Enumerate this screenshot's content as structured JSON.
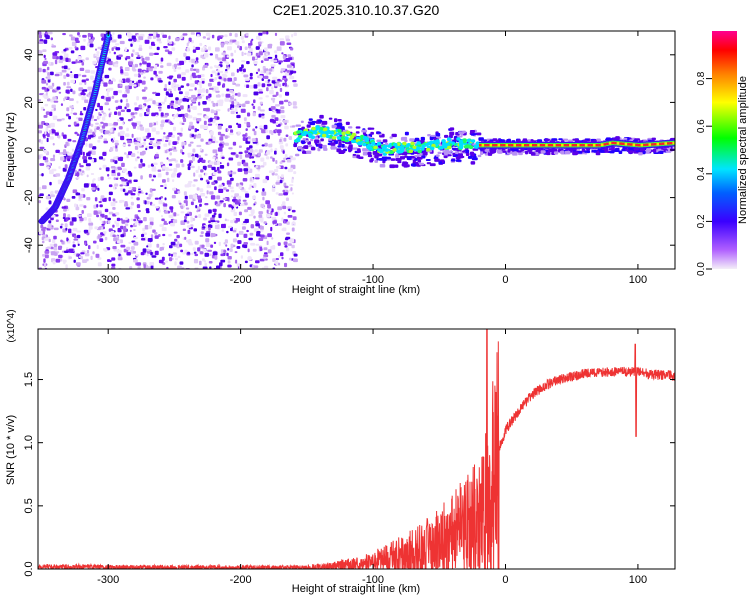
{
  "title": "C2E1.2025.310.10.37.G20",
  "chart_data": [
    {
      "type": "heatmap",
      "xlabel": "Height of straight line (km)",
      "ylabel": "Frequency (Hz)",
      "xlim": [
        -353,
        128
      ],
      "ylim": [
        -50,
        50
      ],
      "x_ticks": [
        -300,
        -200,
        -100,
        0,
        100
      ],
      "y_ticks": [
        -40,
        -20,
        0,
        20,
        40
      ],
      "colorbar": {
        "label": "Normalized spectral amplitude",
        "range": [
          0,
          1
        ],
        "ticks": [
          "0.0",
          "0.2",
          "0.4",
          "0.6",
          "0.8"
        ],
        "colors": [
          "#f4eef8",
          "#9b30ff",
          "#0000ff",
          "#00e5ff",
          "#00ff00",
          "#ffff00",
          "#ff7f00",
          "#ff0000",
          "#ff0090"
        ]
      },
      "features": {
        "noise_region_x": [
          -353,
          -160
        ],
        "arc_track": [
          [
            -350,
            -30
          ],
          [
            -340,
            -24
          ],
          [
            -330,
            -12
          ],
          [
            -320,
            4
          ],
          [
            -310,
            24
          ],
          [
            -300,
            48
          ]
        ],
        "tones_track": [
          [
            -160,
            5
          ],
          [
            -140,
            8
          ],
          [
            -120,
            6
          ],
          [
            -100,
            2
          ],
          [
            -90,
            0
          ],
          [
            -80,
            1
          ],
          [
            -60,
            1
          ],
          [
            -40,
            3
          ],
          [
            -25,
            2
          ],
          [
            -20,
            2
          ],
          [
            0,
            2
          ],
          [
            30,
            2
          ],
          [
            70,
            2
          ],
          [
            80,
            3
          ],
          [
            100,
            2
          ],
          [
            128,
            3
          ]
        ],
        "high_amplitude_band_x": [
          -20,
          128
        ]
      }
    },
    {
      "type": "line",
      "xlabel": "Height of straight line (km)",
      "ylabel": "SNR (10 * v/v)",
      "y_multiplier": "(x10^4)",
      "xlim": [
        -353,
        128
      ],
      "ylim": [
        0,
        1.9
      ],
      "x_ticks": [
        -300,
        -200,
        -100,
        0,
        100
      ],
      "y_ticks": [
        "0.0",
        "0.5",
        "1.0",
        "1.5"
      ],
      "series": [
        {
          "name": "SNR",
          "color": "#ee3333",
          "x": [
            -353,
            -250,
            -200,
            -150,
            -130,
            -110,
            -100,
            -90,
            -80,
            -70,
            -60,
            -50,
            -40,
            -30,
            -20,
            -15,
            -10,
            -5,
            0,
            10,
            20,
            30,
            40,
            50,
            60,
            80,
            100,
            110,
            128
          ],
          "y": [
            0.02,
            0.01,
            0.01,
            0.01,
            0.03,
            0.05,
            0.07,
            0.1,
            0.13,
            0.16,
            0.2,
            0.25,
            0.3,
            0.38,
            0.45,
            0.55,
            0.75,
            0.95,
            1.1,
            1.25,
            1.38,
            1.45,
            1.5,
            1.52,
            1.55,
            1.56,
            1.56,
            1.54,
            1.53
          ]
        }
      ]
    }
  ]
}
